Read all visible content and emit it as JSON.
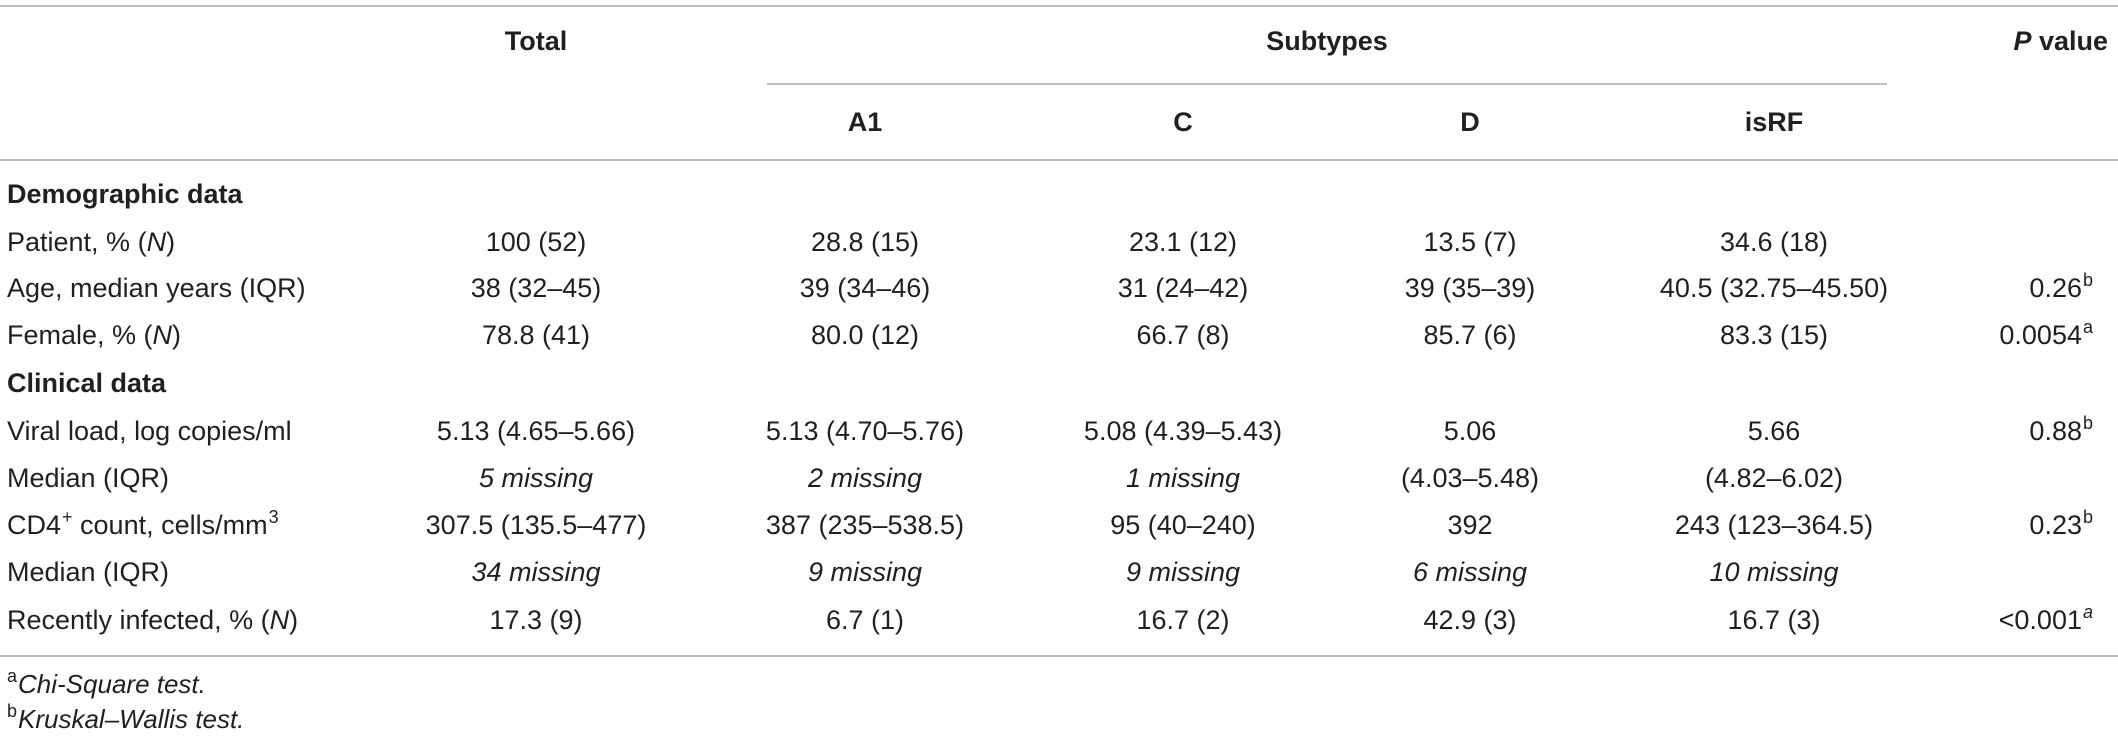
{
  "colors": {
    "text": "#231f20",
    "rule": "#bcbec0"
  },
  "table": {
    "header": {
      "total": "Total",
      "subtypes": "Subtypes",
      "p_value": {
        "italic": "P",
        "rest": " value"
      },
      "subtype_columns": [
        "A1",
        "C",
        "D",
        "isRF"
      ]
    },
    "sections": {
      "demographic": "Demographic data",
      "clinical": "Clinical data"
    },
    "rows": [
      {
        "label": {
          "pre": "Patient, % (",
          "italic": "N",
          "post": ")"
        },
        "total": "100 (52)",
        "a1": "28.8 (15)",
        "c": "23.1 (12)",
        "d": "13.5 (7)",
        "isrf": "34.6 (18)"
      },
      {
        "label": {
          "text": "Age, median years (IQR)"
        },
        "total": "38 (32–45)",
        "a1": "39 (34–46)",
        "c": "31 (24–42)",
        "d": "39 (35–39)",
        "isrf": "40.5 (32.75–45.50)",
        "p_value": {
          "value": "0.26",
          "note": "b"
        }
      },
      {
        "label": {
          "pre": "Female, % (",
          "italic": "N",
          "post": ")"
        },
        "total": "78.8 (41)",
        "a1": "80.0 (12)",
        "c": "66.7 (8)",
        "d": "85.7 (6)",
        "isrf": "83.3 (15)",
        "p_value": {
          "value": "0.0054",
          "note": "a"
        }
      },
      {
        "label": {
          "text": "Viral load, log copies/ml"
        },
        "total": "5.13 (4.65–5.66)",
        "a1": "5.13 (4.70–5.76)",
        "c": "5.08 (4.39–5.43)",
        "d": "5.06",
        "isrf": "5.66",
        "p_value": {
          "value": "0.88",
          "note": "b"
        }
      },
      {
        "label": {
          "text": "Median (IQR)"
        },
        "total": "5 missing",
        "a1": "2 missing",
        "c": "1 missing",
        "d": "(4.03–5.48)",
        "isrf": "(4.82–6.02)"
      },
      {
        "label": {
          "base": "CD4",
          "sup": "+",
          "rest": " count, cells/mm",
          "sup2": "3"
        },
        "total": "307.5 (135.5–477)",
        "a1": "387 (235–538.5)",
        "c": "95 (40–240)",
        "d": "392",
        "isrf": "243 (123–364.5)",
        "p_value": {
          "value": "0.23",
          "note": "b"
        }
      },
      {
        "label": {
          "text": "Median (IQR)"
        },
        "total": "34 missing",
        "a1": "9 missing",
        "c": "9 missing",
        "d": "6 missing",
        "isrf": "10 missing"
      },
      {
        "label": {
          "pre": "Recently infected, % (",
          "italic": "N",
          "post": ")"
        },
        "total": "17.3 (9)",
        "a1": "6.7 (1)",
        "c": "16.7 (2)",
        "d": "42.9 (3)",
        "isrf": "16.7 (3)",
        "p_value": {
          "value": "<0.001",
          "note": "a"
        }
      }
    ]
  },
  "footnotes": [
    {
      "mark": "a",
      "text": "Chi-Square test."
    },
    {
      "mark": "b",
      "text": "Kruskal–Wallis test."
    }
  ]
}
